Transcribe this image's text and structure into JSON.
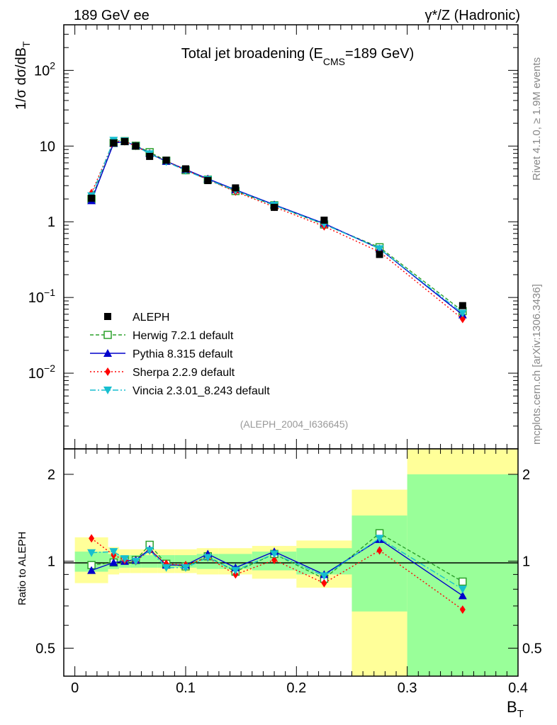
{
  "header": {
    "left": "189 GeV ee",
    "right": "γ*/Z (Hadronic)"
  },
  "side": {
    "rivet": "Rivet 4.1.0, ≥ 1.9M events",
    "mcplots": "mcplots.cern.ch [arXiv:1306.3436]"
  },
  "chart_data": [
    {
      "type": "line",
      "panel": "main",
      "title_main": "Total jet broadening (E",
      "title_sub": "CMS",
      "title_end": "=189 GeV)",
      "ylabel_main": "1/σ  dσ/dB",
      "ylabel_sub": "T",
      "yscale": "log",
      "ylim": [
        0.001,
        400
      ],
      "xlim": [
        -0.01,
        0.4
      ],
      "x": [
        0.015,
        0.035,
        0.045,
        0.055,
        0.0675,
        0.0825,
        0.1,
        0.12,
        0.145,
        0.18,
        0.225,
        0.275,
        0.35
      ],
      "y_tick_labels": [
        "10",
        "1",
        "10"
      ],
      "y_tick_exps": [
        "2",
        "",
        "",
        "−1",
        "−2"
      ],
      "y_tick_text": [
        "10^2",
        "10",
        "1",
        "10^-1",
        "10^-2"
      ],
      "series": [
        {
          "name": "ALEPH",
          "key": "aleph",
          "color": "#000000",
          "marker": "square",
          "values": [
            2.05,
            11.0,
            11.5,
            10.0,
            7.3,
            6.5,
            5.0,
            3.5,
            2.8,
            1.55,
            1.05,
            0.37,
            0.078
          ]
        },
        {
          "name": "Herwig 7.2.1 default",
          "key": "herwig",
          "color": "#2ca02c",
          "marker": "open-square",
          "dash": "5,3",
          "values": [
            2.0,
            11.0,
            11.6,
            10.1,
            8.3,
            6.4,
            4.8,
            3.6,
            2.55,
            1.65,
            0.92,
            0.46,
            0.066
          ]
        },
        {
          "name": "Pythia 8.315 default",
          "key": "pythia",
          "color": "#0000cc",
          "marker": "triangle-up",
          "dash": "",
          "values": [
            1.9,
            10.9,
            11.5,
            10.1,
            8.0,
            6.3,
            4.9,
            3.7,
            2.65,
            1.68,
            0.95,
            0.44,
            0.059
          ]
        },
        {
          "name": "Sherpa 2.2.9 default",
          "key": "sherpa",
          "color": "#ff0000",
          "marker": "diamond",
          "dash": "2,3",
          "values": [
            2.4,
            11.5,
            11.5,
            10.0,
            7.9,
            6.3,
            4.85,
            3.6,
            2.5,
            1.57,
            0.87,
            0.4,
            0.052
          ]
        },
        {
          "name": "Vincia 2.3.01_8.243 default",
          "key": "vincia",
          "color": "#17becf",
          "marker": "triangle-down",
          "dash": "8,3,2,3",
          "values": [
            2.2,
            11.9,
            11.7,
            10.0,
            7.9,
            6.2,
            4.75,
            3.6,
            2.6,
            1.65,
            0.93,
            0.44,
            0.062
          ]
        }
      ],
      "source_label": "(ALEPH_2004_I636645)"
    },
    {
      "type": "line",
      "panel": "ratio",
      "ylabel": "Ratio to ALEPH",
      "xlabel_main": "B",
      "xlabel_sub": "T",
      "yscale": "log",
      "ylim": [
        0.4,
        2.45
      ],
      "xlim": [
        -0.01,
        0.4
      ],
      "x_ticks": [
        0,
        0.1,
        0.2,
        0.3,
        0.4
      ],
      "x_tick_labels": [
        "0",
        "0.1",
        "0.2",
        "0.3",
        "0.4"
      ],
      "y_ticks": [
        0.5,
        1,
        2
      ],
      "y_tick_labels": [
        "0.5",
        "1",
        "2"
      ],
      "bins": [
        {
          "x0": 0.0,
          "x1": 0.03,
          "inner": [
            0.92,
            1.08
          ],
          "outer": [
            0.84,
            1.21
          ]
        },
        {
          "x0": 0.03,
          "x1": 0.04,
          "inner": [
            0.94,
            1.06
          ],
          "outer": [
            0.9,
            1.12
          ]
        },
        {
          "x0": 0.04,
          "x1": 0.05,
          "inner": [
            0.95,
            1.05
          ],
          "outer": [
            0.91,
            1.1
          ]
        },
        {
          "x0": 0.05,
          "x1": 0.06,
          "inner": [
            0.95,
            1.05
          ],
          "outer": [
            0.91,
            1.1
          ]
        },
        {
          "x0": 0.06,
          "x1": 0.075,
          "inner": [
            0.95,
            1.05
          ],
          "outer": [
            0.91,
            1.1
          ]
        },
        {
          "x0": 0.075,
          "x1": 0.09,
          "inner": [
            0.95,
            1.05
          ],
          "outer": [
            0.91,
            1.1
          ]
        },
        {
          "x0": 0.09,
          "x1": 0.11,
          "inner": [
            0.95,
            1.05
          ],
          "outer": [
            0.91,
            1.1
          ]
        },
        {
          "x0": 0.11,
          "x1": 0.13,
          "inner": [
            0.94,
            1.06
          ],
          "outer": [
            0.9,
            1.11
          ]
        },
        {
          "x0": 0.13,
          "x1": 0.16,
          "inner": [
            0.94,
            1.06
          ],
          "outer": [
            0.9,
            1.11
          ]
        },
        {
          "x0": 0.16,
          "x1": 0.2,
          "inner": [
            0.93,
            1.08
          ],
          "outer": [
            0.87,
            1.13
          ]
        },
        {
          "x0": 0.2,
          "x1": 0.25,
          "inner": [
            0.9,
            1.11
          ],
          "outer": [
            0.81,
            1.18
          ]
        },
        {
          "x0": 0.25,
          "x1": 0.3,
          "inner": [
            0.4,
            1.44
          ],
          "outer": [
            0.4,
            1.77
          ],
          "gap": [
            0.4,
            0.67
          ]
        },
        {
          "x0": 0.3,
          "x1": 0.4,
          "inner": [
            0.4,
            2.0
          ],
          "outer": [
            0.4,
            2.45
          ]
        }
      ],
      "ratios": {
        "herwig": [
          0.97,
          0.99,
          1.01,
          1.01,
          1.14,
          0.98,
          0.96,
          1.04,
          0.92,
          1.06,
          0.87,
          1.25,
          0.85
        ],
        "pythia": [
          0.93,
          0.99,
          1.0,
          1.01,
          1.1,
          0.97,
          0.97,
          1.06,
          0.95,
          1.08,
          0.9,
          1.19,
          0.76
        ],
        "sherpa": [
          1.2,
          1.05,
          1.01,
          1.0,
          1.09,
          0.98,
          0.97,
          1.03,
          0.9,
          1.01,
          0.84,
          1.09,
          0.68
        ],
        "vincia": [
          1.07,
          1.08,
          1.02,
          1.0,
          1.09,
          0.95,
          0.95,
          1.03,
          0.93,
          1.06,
          0.89,
          1.2,
          0.8
        ]
      }
    }
  ]
}
